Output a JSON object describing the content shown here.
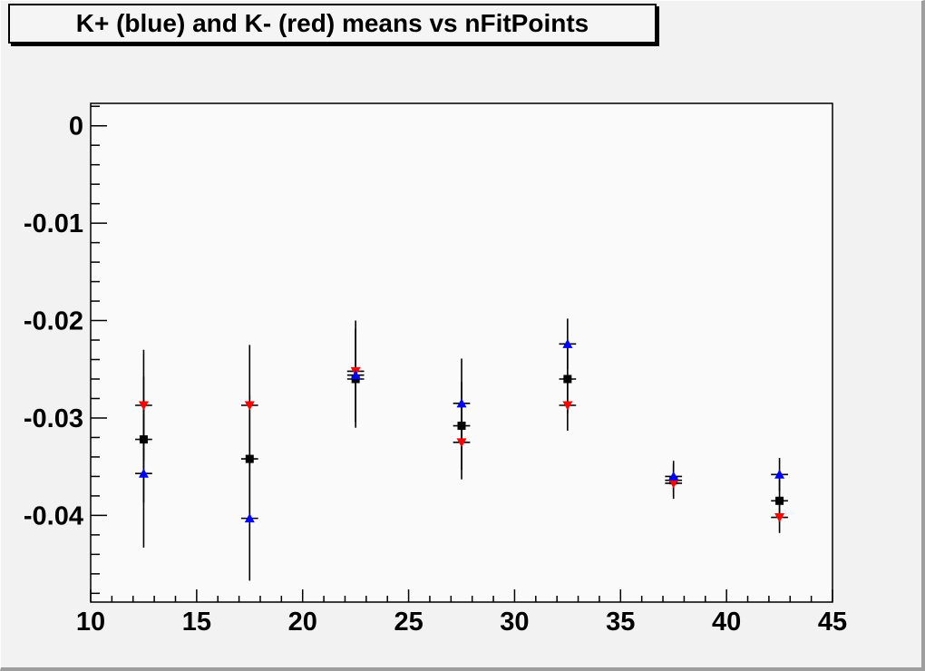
{
  "window": {
    "background": "#f2f2f2",
    "border_shadow_color": "#9e9e9e"
  },
  "title_box": {
    "text": "K+ (blue) and K- (red) means vs nFitPoints",
    "fill": "#f5f5f5",
    "border_color": "#000000"
  },
  "chart_data": {
    "type": "scatter",
    "title": "K+ (blue) and K- (red) means vs nFitPoints",
    "xlabel": "",
    "ylabel": "",
    "xlim": [
      10,
      45
    ],
    "ylim": [
      -0.0489,
      0.0023
    ],
    "grid": false,
    "legend_position": "none",
    "frame_fill": "#fafafa",
    "frame_stroke": "#000000",
    "error_bar_color": "#000000",
    "x_major_ticks": [
      10,
      15,
      20,
      25,
      30,
      35,
      40,
      45
    ],
    "x_major_tick_labels": [
      "10",
      "15",
      "20",
      "25",
      "30",
      "35",
      "40",
      "45"
    ],
    "x_minor_step": 1,
    "y_major_ticks": [
      0,
      -0.01,
      -0.02,
      -0.03,
      -0.04
    ],
    "y_major_tick_labels": [
      "0",
      "-0.01",
      "-0.02",
      "-0.03",
      "-0.04"
    ],
    "y_minor_step": 0.002,
    "x": [
      12.5,
      17.5,
      22.5,
      27.5,
      32.5,
      37.5,
      42.5
    ],
    "xerr": 0.4,
    "series": [
      {
        "name": "black-squares-mean",
        "marker": "square",
        "color": "#000000",
        "values": [
          -0.0322,
          -0.0342,
          -0.026,
          -0.0308,
          -0.026,
          -0.0364,
          -0.0385
        ],
        "yerr": [
          0.0065,
          0.0065,
          0.005,
          0.0045,
          0.0035,
          0.0017,
          0.0022
        ]
      },
      {
        "name": "K- (red)",
        "marker": "triangle-down",
        "color": "#ff0000",
        "values": [
          -0.0287,
          -0.0287,
          -0.0252,
          -0.0325,
          -0.0287,
          -0.0367,
          -0.0402
        ],
        "yerr": [
          0.0057,
          0.0062,
          0.0052,
          0.0038,
          0.0026,
          0.0016,
          0.0016
        ]
      },
      {
        "name": "K+ (blue)",
        "marker": "triangle-up",
        "color": "#0000ff",
        "values": [
          -0.0357,
          -0.0403,
          -0.0256,
          -0.0285,
          -0.0224,
          -0.036,
          -0.0358
        ],
        "yerr": [
          0.0076,
          0.0064,
          0.0048,
          0.0046,
          0.0026,
          0.0016,
          0.0017
        ]
      }
    ]
  }
}
